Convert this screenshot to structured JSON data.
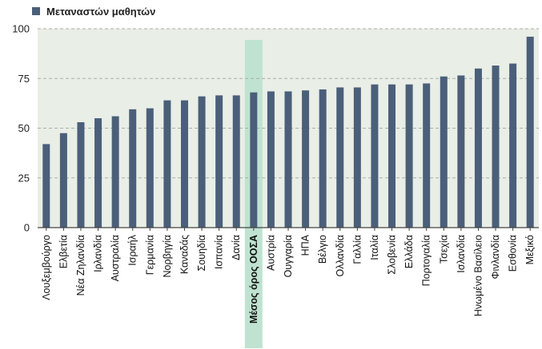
{
  "chart_data": {
    "type": "bar",
    "legend": {
      "label": "Μεταναστών μαθητών",
      "placement": "top-left"
    },
    "categories": [
      "Λουξεμβούργο",
      "Ελβετία",
      "Νέα Ζηλανδία",
      "Ιρλανδία",
      "Αυστραλία",
      "Ισραήλ",
      "Γερμανία",
      "Νορβηγία",
      "Καναδάς",
      "Σουηδία",
      "Ισπανία",
      "Δανία",
      "Μέσος όρος ΟΟΣΑ",
      "Αυστρία",
      "Ουγγαρία",
      "ΗΠΑ",
      "Βέλγιο",
      "Ολλανδία",
      "Γαλλία",
      "Ιταλία",
      "Σλοβενία",
      "Ελλάδα",
      "Πορτογαλία",
      "Τσεχία",
      "Ισλανδία",
      "Ηνωμένο Βασίλειο",
      "Φινλανδία",
      "Εσθονία",
      "Μεξικό"
    ],
    "values": [
      42,
      47.5,
      53,
      55,
      56,
      59.5,
      60,
      64,
      64,
      66,
      66.5,
      66.5,
      68,
      68.5,
      68.5,
      69,
      69.5,
      70.5,
      70.5,
      72,
      72,
      72,
      72.5,
      76,
      76.5,
      80,
      81.5,
      82.5,
      96
    ],
    "highlight_category": "Μέσος όρος ΟΟΣΑ",
    "yticks": [
      0,
      25,
      50,
      75,
      100
    ],
    "ylim": [
      0,
      100
    ],
    "grid": true,
    "colors": {
      "bar": "#4b5f7a",
      "highlight": "#bfe3d0",
      "plot_bg": "#e9eee6",
      "grid": "#a9aea6",
      "axis": "#444444"
    }
  }
}
